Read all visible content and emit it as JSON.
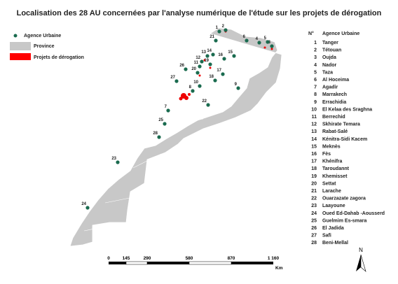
{
  "title": "Localisation des 28 AU concernées par l'analyse numérique de l'étude sur les projets de dérogation",
  "legend": {
    "items": [
      "Agence Urbaine",
      "Province",
      "Projets de dérogation"
    ]
  },
  "table": {
    "header": [
      "N°",
      "Agence Urbaine"
    ],
    "rows": [
      [
        "1",
        "Tanger"
      ],
      [
        "2",
        "Tétouan"
      ],
      [
        "3",
        "Oujda"
      ],
      [
        "4",
        "Nador"
      ],
      [
        "5",
        "Taza"
      ],
      [
        "6",
        "Al Hoceima"
      ],
      [
        "7",
        "Agadir"
      ],
      [
        "8",
        "Marrakech"
      ],
      [
        "9",
        "Errachidia"
      ],
      [
        "10",
        "El Kelaa des Sraghna"
      ],
      [
        "11",
        "Berrechid"
      ],
      [
        "12",
        "Skhirate Temara"
      ],
      [
        "13",
        "Rabat-Salé"
      ],
      [
        "14",
        "Kénitra-Sidi Kacem"
      ],
      [
        "15",
        "Meknès"
      ],
      [
        "16",
        "Fès"
      ],
      [
        "17",
        "Khénifra"
      ],
      [
        "18",
        "Taroudannt"
      ],
      [
        "19",
        "Khemisset"
      ],
      [
        "20",
        "Settat"
      ],
      [
        "21",
        "Larache"
      ],
      [
        "22",
        "Ouarzazate zagora"
      ],
      [
        "23",
        "Laayoune"
      ],
      [
        "24",
        "Oued Ed-Dahab -Aousserd"
      ],
      [
        "25",
        "Guelmim Es-smara"
      ],
      [
        "26",
        "El Jadida"
      ],
      [
        "27",
        "Safi"
      ],
      [
        "28",
        "Beni-Mellal"
      ]
    ]
  },
  "scale": {
    "ticks": [
      "0",
      "145",
      "290",
      "580",
      "870",
      "1 160"
    ],
    "unit": "Km"
  },
  "north": "N"
}
